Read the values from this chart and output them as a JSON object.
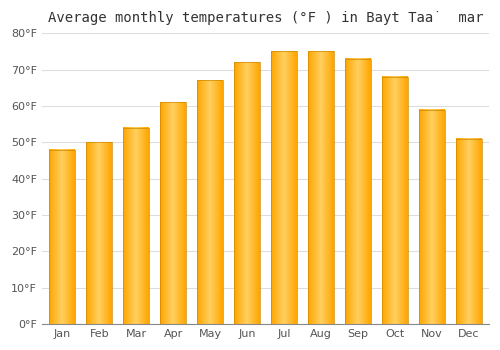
{
  "title": "Average monthly temperatures (°F ) in Bayt Taȧ  mar",
  "months": [
    "Jan",
    "Feb",
    "Mar",
    "Apr",
    "May",
    "Jun",
    "Jul",
    "Aug",
    "Sep",
    "Oct",
    "Nov",
    "Dec"
  ],
  "values": [
    48,
    50,
    54,
    61,
    67,
    72,
    75,
    75,
    73,
    68,
    59,
    51
  ],
  "bar_color_main": "#FFA500",
  "bar_color_light": "#FFD060",
  "bar_edge_color": "#CC8800",
  "ylim": [
    0,
    80
  ],
  "yticks": [
    0,
    10,
    20,
    30,
    40,
    50,
    60,
    70,
    80
  ],
  "ytick_labels": [
    "0°F",
    "10°F",
    "20°F",
    "30°F",
    "40°F",
    "50°F",
    "60°F",
    "70°F",
    "80°F"
  ],
  "background_color": "#FFFFFF",
  "plot_bg_color": "#FFFFFF",
  "grid_color": "#DDDDDD",
  "title_fontsize": 10,
  "tick_fontsize": 8,
  "tick_color": "#555555",
  "bar_width": 0.7
}
